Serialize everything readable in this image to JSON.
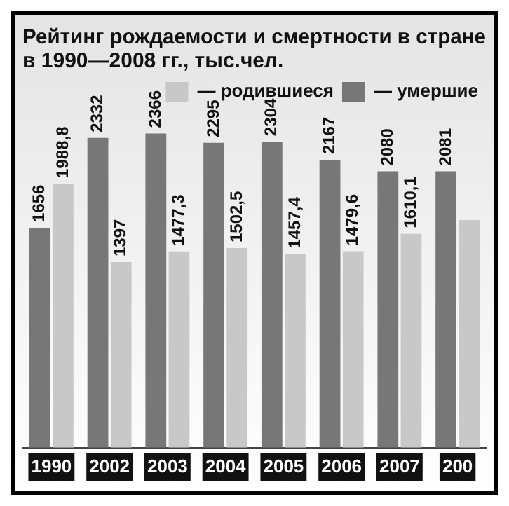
{
  "chart_data": {
    "type": "bar",
    "title": [
      "Рейтинг рождаемости и смертности в стране",
      "в 1990—2008 гг., тыс.чел."
    ],
    "categories": [
      "1990",
      "2002",
      "2003",
      "2004",
      "2005",
      "2006",
      "2007",
      "200"
    ],
    "series": [
      {
        "name": "— умершие",
        "color": "#777777",
        "values": [
          1656,
          2332,
          2366,
          2295,
          2304,
          2167,
          2080,
          2081
        ],
        "value_labels": [
          "1656",
          "2332",
          "2366",
          "2295",
          "2304",
          "2167",
          "2080",
          "2081"
        ]
      },
      {
        "name": "— родившиеся",
        "color": "#c8c8c8",
        "values": [
          1988.8,
          1397,
          1477.3,
          1502.5,
          1457.4,
          1479.6,
          1610.1,
          1714
        ],
        "value_labels": [
          "1988,8",
          "1397",
          "1477,3",
          "1502,5",
          "1457,4",
          "1479,6",
          "1610,1",
          null
        ]
      }
    ],
    "legend": "top right",
    "grid": false
  }
}
